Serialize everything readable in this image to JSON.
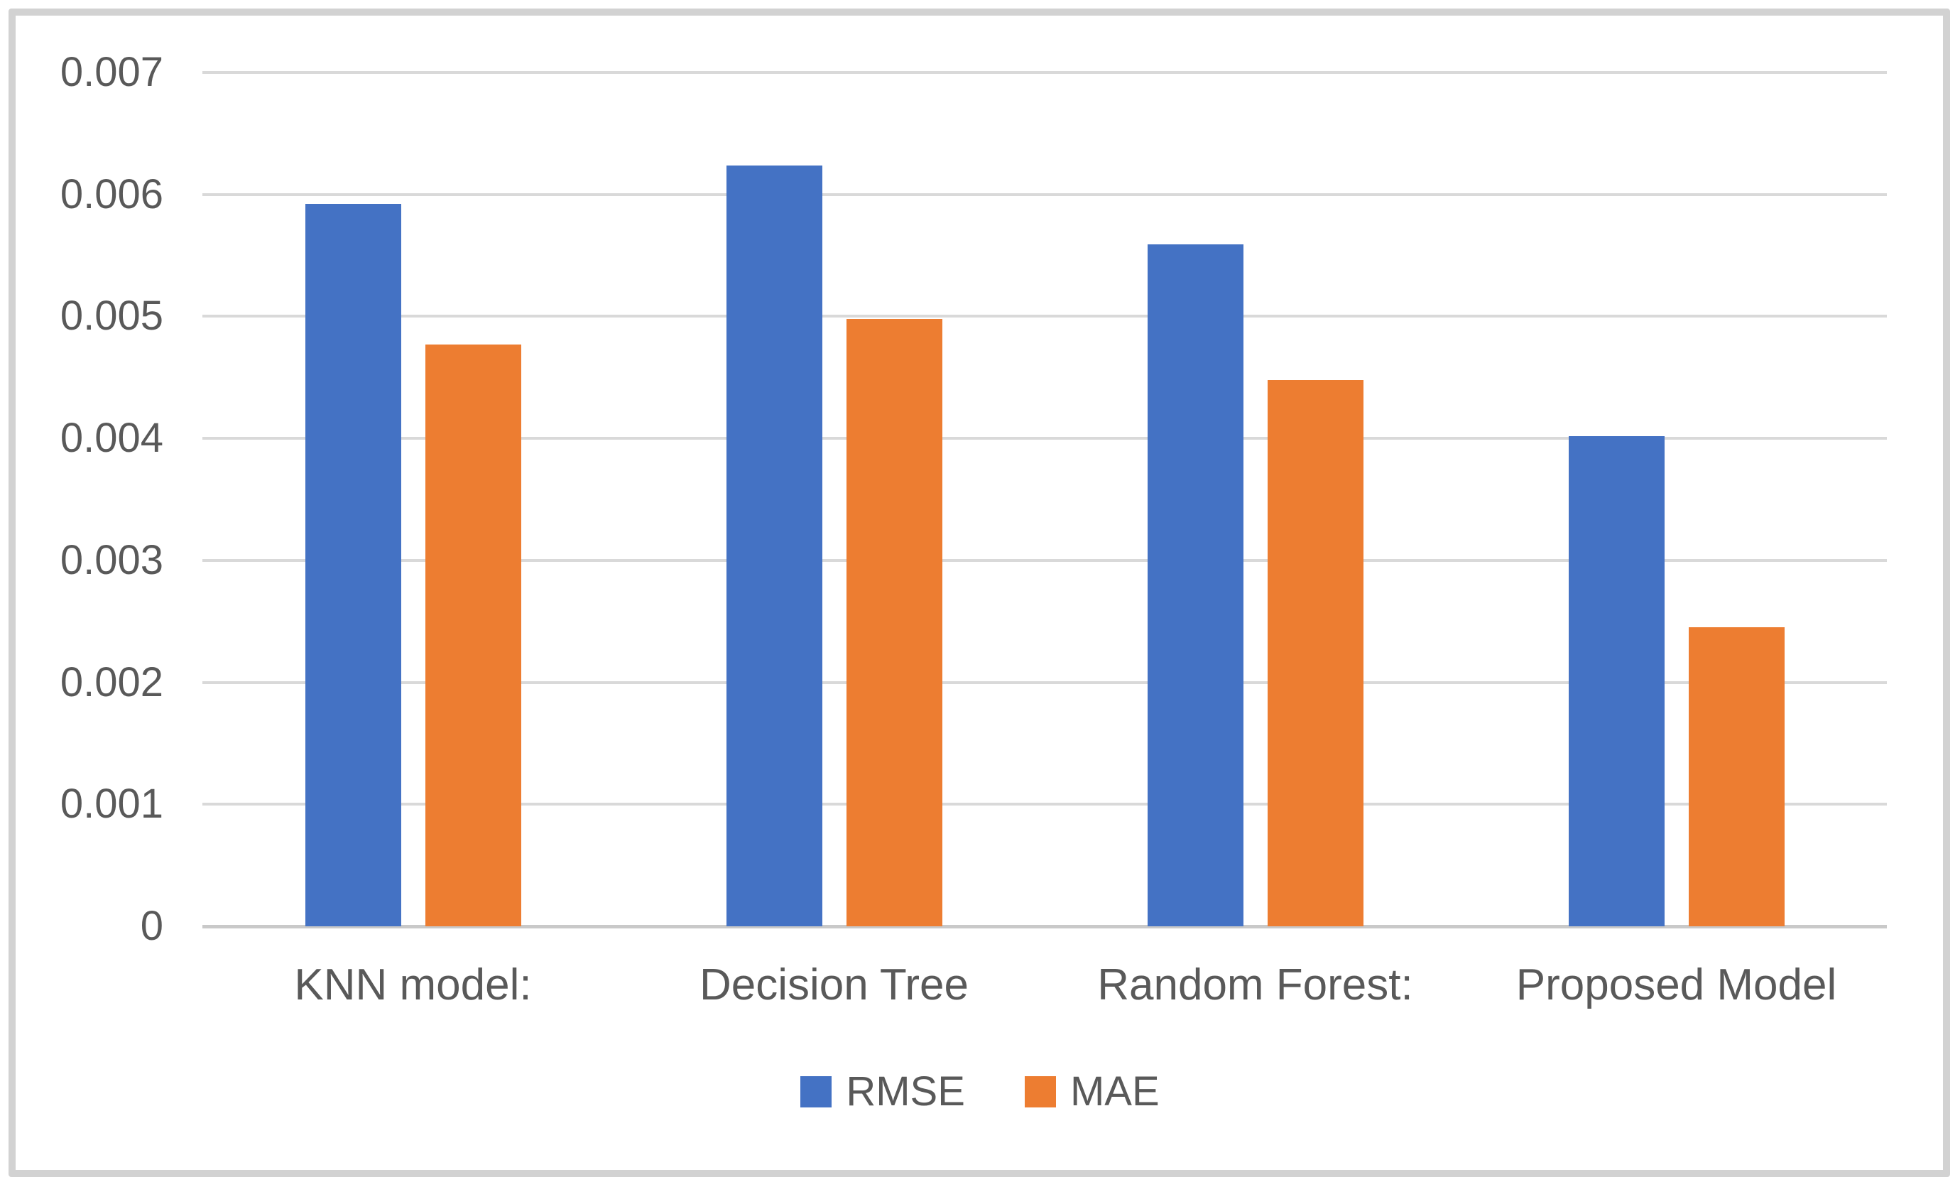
{
  "chart_data": {
    "type": "bar",
    "title": "",
    "xlabel": "",
    "ylabel": "",
    "categories": [
      "KNN model:",
      "Decision Tree",
      "Random Forest:",
      "Proposed Model"
    ],
    "series": [
      {
        "name": "RMSE",
        "color": "#4472C4",
        "values": [
          0.00592,
          0.00624,
          0.00559,
          0.00402
        ]
      },
      {
        "name": "MAE",
        "color": "#ED7D31",
        "values": [
          0.00477,
          0.00498,
          0.00448,
          0.00245
        ]
      }
    ],
    "ylim": [
      0,
      0.007
    ],
    "ytick_step": 0.001,
    "ytick_labels": [
      "0",
      "0.001",
      "0.002",
      "0.003",
      "0.004",
      "0.005",
      "0.006",
      "0.007"
    ],
    "grid": true,
    "gridline_color": "#D9D9D9",
    "axis_text_color": "#595959",
    "legend_position": "bottom-center"
  },
  "legend": {
    "items": [
      {
        "label": "RMSE",
        "color": "#4472C4"
      },
      {
        "label": "MAE",
        "color": "#ED7D31"
      }
    ]
  }
}
